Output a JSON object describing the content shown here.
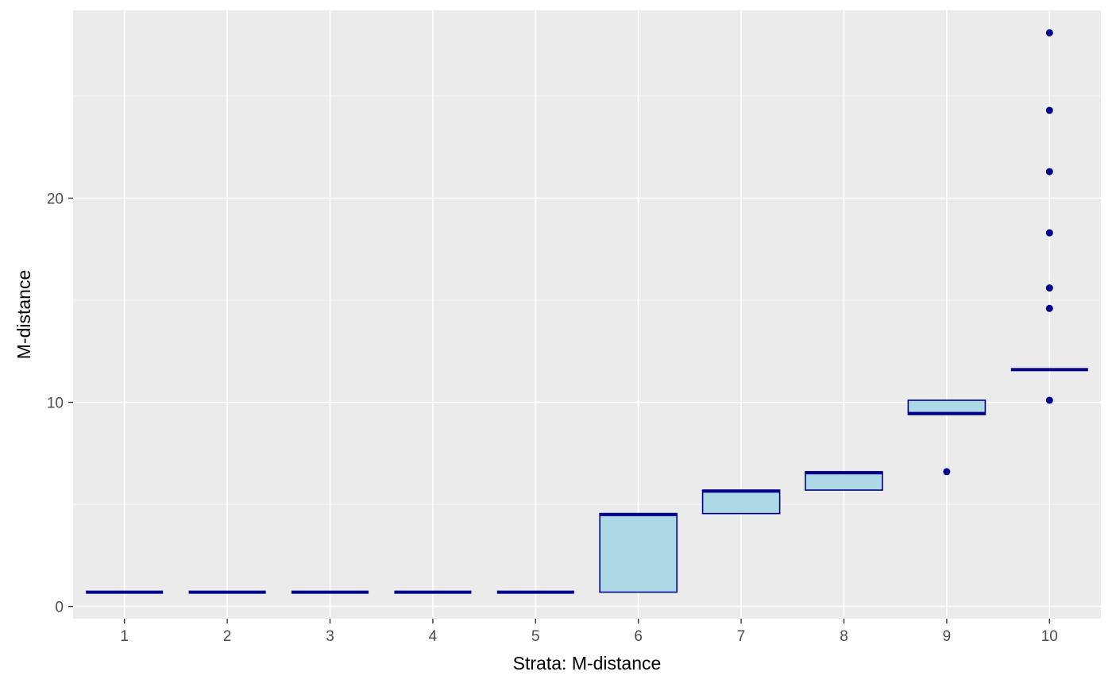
{
  "chart_data": {
    "type": "boxplot",
    "xlabel": "Strata: M-distance",
    "ylabel": "M-distance",
    "categories": [
      "1",
      "2",
      "3",
      "4",
      "5",
      "6",
      "7",
      "8",
      "9",
      "10"
    ],
    "ylim": [
      -0.6,
      29.2
    ],
    "yticks": [
      0,
      10,
      20
    ],
    "grid": true,
    "legend": "none",
    "boxes": [
      {
        "category": "1",
        "lower": 0.7,
        "q1": 0.7,
        "median": 0.7,
        "q3": 0.7,
        "upper": 0.7,
        "outliers": []
      },
      {
        "category": "2",
        "lower": 0.7,
        "q1": 0.7,
        "median": 0.7,
        "q3": 0.7,
        "upper": 0.7,
        "outliers": []
      },
      {
        "category": "3",
        "lower": 0.7,
        "q1": 0.7,
        "median": 0.7,
        "q3": 0.7,
        "upper": 0.7,
        "outliers": []
      },
      {
        "category": "4",
        "lower": 0.7,
        "q1": 0.7,
        "median": 0.7,
        "q3": 0.7,
        "upper": 0.7,
        "outliers": []
      },
      {
        "category": "5",
        "lower": 0.7,
        "q1": 0.7,
        "median": 0.7,
        "q3": 0.7,
        "upper": 0.7,
        "outliers": []
      },
      {
        "category": "6",
        "lower": 0.7,
        "q1": 0.7,
        "median": 4.5,
        "q3": 4.55,
        "upper": 4.55,
        "outliers": []
      },
      {
        "category": "7",
        "lower": 4.55,
        "q1": 4.55,
        "median": 5.65,
        "q3": 5.7,
        "upper": 5.7,
        "outliers": []
      },
      {
        "category": "8",
        "lower": 5.7,
        "q1": 5.7,
        "median": 6.55,
        "q3": 6.6,
        "upper": 6.6,
        "outliers": []
      },
      {
        "category": "9",
        "lower": 9.4,
        "q1": 9.4,
        "median": 9.45,
        "q3": 10.1,
        "upper": 10.1,
        "outliers": [
          6.6
        ]
      },
      {
        "category": "10",
        "lower": 11.6,
        "q1": 11.6,
        "median": 11.6,
        "q3": 11.6,
        "upper": 11.6,
        "outliers": [
          10.1,
          14.6,
          15.6,
          18.3,
          21.3,
          24.3,
          28.1
        ]
      }
    ],
    "colors": {
      "panel_background": "#ebebeb",
      "grid_major": "#ffffff",
      "box_fill": "#add8e6",
      "box_stroke": "#00008b",
      "tick_text": "#4d4d4d",
      "axis_title": "#000000"
    }
  }
}
